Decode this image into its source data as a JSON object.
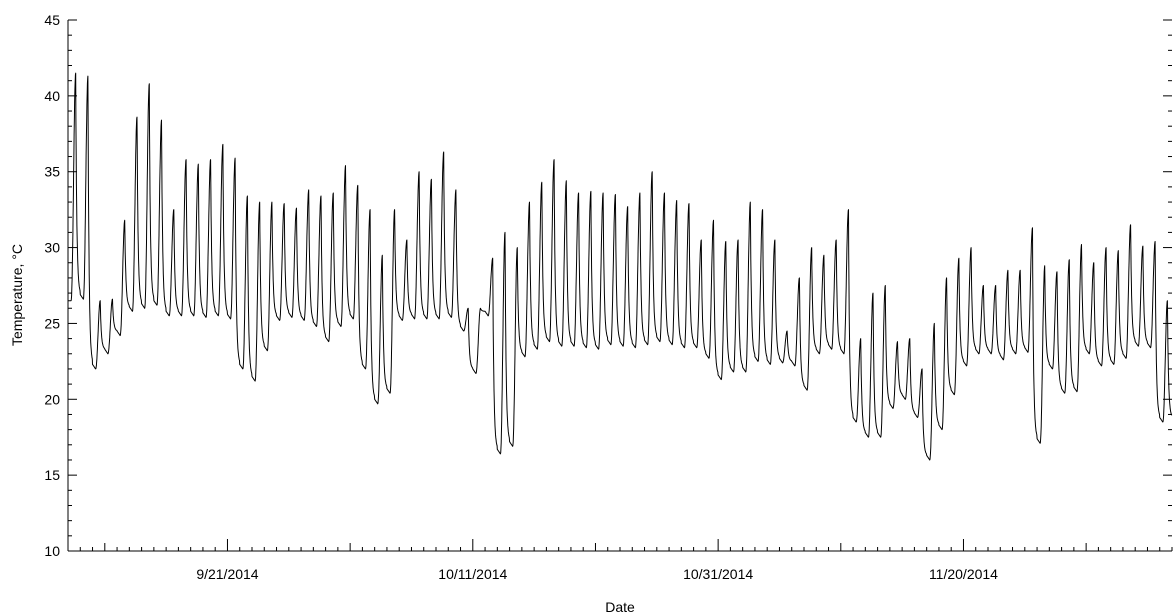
{
  "chart_data": {
    "type": "line",
    "title": "",
    "xlabel": "Date",
    "ylabel": "Temperature, °C",
    "ylim": [
      10,
      45
    ],
    "xlim": [
      "2014-09-08",
      "2014-12-07"
    ],
    "grid": false,
    "legend": "none",
    "line_color": "#000000",
    "y_ticks": [
      10,
      15,
      20,
      25,
      30,
      35,
      40,
      45
    ],
    "y_tick_labels": [
      "10",
      "15",
      "20",
      "25",
      "30",
      "35",
      "40",
      "45"
    ],
    "x_ticks": [
      "2014-09-21",
      "2014-10-11",
      "2014-10-31",
      "2014-11-20"
    ],
    "x_tick_labels": [
      "9/21/2014",
      "10/11/2014",
      "10/31/2014",
      "11/20/2014"
    ],
    "series": [
      {
        "x": [
          "2014-09-08",
          "2014-09-09",
          "2014-09-10",
          "2014-09-11",
          "2014-09-12",
          "2014-09-13",
          "2014-09-14",
          "2014-09-15",
          "2014-09-16",
          "2014-09-17",
          "2014-09-18",
          "2014-09-19",
          "2014-09-20",
          "2014-09-21",
          "2014-09-22",
          "2014-09-23",
          "2014-09-24",
          "2014-09-25",
          "2014-09-26",
          "2014-09-27",
          "2014-09-28",
          "2014-09-29",
          "2014-09-30",
          "2014-10-01",
          "2014-10-02",
          "2014-10-03",
          "2014-10-04",
          "2014-10-05",
          "2014-10-06",
          "2014-10-07",
          "2014-10-08",
          "2014-10-09",
          "2014-10-10",
          "2014-10-11",
          "2014-10-12",
          "2014-10-13",
          "2014-10-14",
          "2014-10-15",
          "2014-10-16",
          "2014-10-17",
          "2014-10-18",
          "2014-10-19",
          "2014-10-20",
          "2014-10-21",
          "2014-10-22",
          "2014-10-23",
          "2014-10-24",
          "2014-10-25",
          "2014-10-26",
          "2014-10-27",
          "2014-10-28",
          "2014-10-29",
          "2014-10-30",
          "2014-10-31",
          "2014-11-01",
          "2014-11-02",
          "2014-11-03",
          "2014-11-04",
          "2014-11-05",
          "2014-11-06",
          "2014-11-07",
          "2014-11-08",
          "2014-11-09",
          "2014-11-10",
          "2014-11-11",
          "2014-11-12",
          "2014-11-13",
          "2014-11-14",
          "2014-11-15",
          "2014-11-16",
          "2014-11-17",
          "2014-11-18",
          "2014-11-19",
          "2014-11-20",
          "2014-11-21",
          "2014-11-22",
          "2014-11-23",
          "2014-11-24",
          "2014-11-25",
          "2014-11-26",
          "2014-11-27",
          "2014-11-28",
          "2014-11-29",
          "2014-11-30",
          "2014-12-01",
          "2014-12-02",
          "2014-12-03",
          "2014-12-04",
          "2014-12-05",
          "2014-12-06"
        ],
        "daily_max": [
          41.5,
          41.3,
          26.5,
          26.6,
          31.8,
          38.6,
          40.8,
          38.4,
          32.5,
          35.8,
          35.5,
          35.8,
          36.8,
          35.9,
          33.4,
          33.0,
          33.0,
          32.9,
          32.6,
          33.8,
          33.4,
          33.6,
          35.4,
          34.1,
          32.5,
          29.5,
          32.5,
          30.5,
          35.0,
          34.5,
          36.3,
          33.8,
          26.0,
          26.0,
          29.3,
          31.0,
          30.0,
          33.0,
          34.3,
          35.8,
          34.4,
          33.6,
          33.7,
          33.6,
          33.5,
          32.7,
          33.6,
          35.0,
          33.6,
          33.1,
          32.9,
          30.5,
          31.8,
          30.4,
          30.5,
          33.0,
          32.5,
          30.5,
          24.5,
          28.0,
          30.0,
          29.5,
          30.5,
          32.5,
          24.0,
          27.0,
          27.5,
          23.8,
          24.0,
          22.0,
          25.0,
          28.0,
          29.3,
          30.0,
          27.5,
          27.5,
          28.5,
          28.5,
          31.3,
          28.8,
          28.4,
          29.2,
          30.2,
          29.0,
          30.0,
          29.8,
          31.5,
          30.1,
          30.4,
          26.5
        ],
        "daily_min": [
          26.5,
          26.6,
          22.0,
          23.0,
          24.2,
          25.8,
          26.0,
          26.2,
          25.5,
          25.5,
          25.5,
          25.4,
          25.5,
          25.3,
          22.0,
          21.2,
          23.2,
          25.2,
          25.4,
          25.2,
          24.8,
          23.8,
          24.8,
          25.3,
          22.0,
          19.7,
          20.4,
          25.2,
          25.3,
          25.3,
          25.3,
          25.4,
          24.5,
          21.7,
          25.5,
          16.4,
          16.9,
          22.8,
          23.3,
          23.8,
          23.5,
          23.5,
          23.4,
          23.3,
          23.6,
          23.5,
          23.4,
          23.6,
          23.8,
          23.6,
          23.4,
          23.4,
          22.7,
          21.3,
          21.8,
          21.8,
          22.5,
          22.3,
          22.4,
          22.2,
          20.6,
          23.0,
          23.3,
          23.0,
          18.5,
          17.5,
          17.5,
          19.4,
          20.0,
          18.8,
          16.0,
          18.0,
          20.3,
          22.2,
          23.0,
          23.0,
          22.6,
          23.0,
          23.1,
          17.1,
          22.0,
          20.4,
          20.5,
          23.0,
          22.2,
          22.3,
          22.7,
          23.5,
          23.4,
          18.5
        ]
      }
    ]
  }
}
